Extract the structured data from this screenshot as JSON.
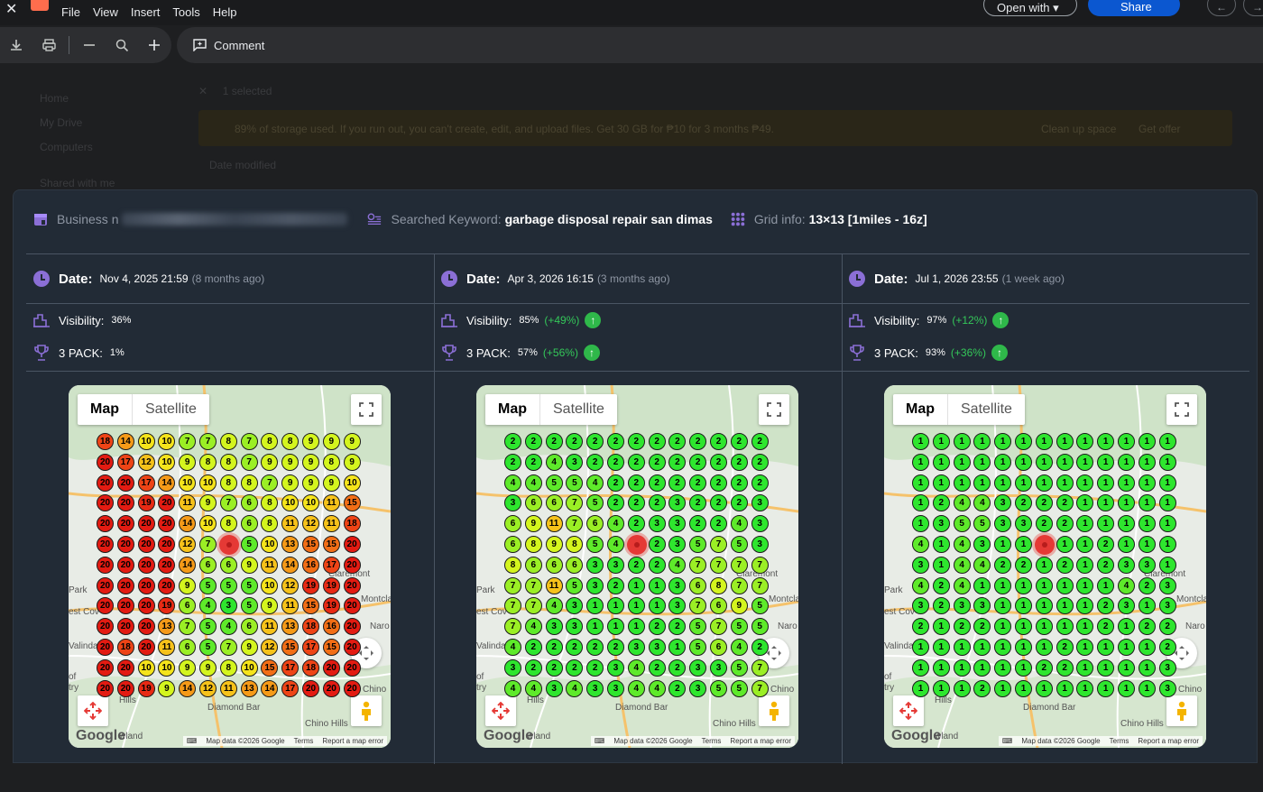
{
  "menubar": {
    "menus": [
      "File",
      "View",
      "Insert",
      "Tools",
      "Help"
    ],
    "open_with": "Open with",
    "share": "Share"
  },
  "toolbar": {
    "comment": "Comment"
  },
  "background": {
    "sidebar": [
      "Home",
      "My Drive",
      "Computers",
      "Shared with me"
    ],
    "selected": "1 selected",
    "banner": "89% of storage used. If you run out, you can't create, edit, and upload files. Get 30 GB for ₱10 for 3 months ₱49.",
    "banner_actions": [
      "Clean up space",
      "Get offer"
    ],
    "date_modified": "Date modified"
  },
  "header": {
    "business_label": "Business n",
    "keyword_label": "Searched Keyword:",
    "keyword_value": "garbage disposal repair san dimas",
    "grid_label": "Grid info:",
    "grid_value": "13×13 [1miles - 16z]"
  },
  "date_label": "Date:",
  "visibility_label": "Visibility:",
  "pack_label": "3 PACK:",
  "columns": [
    {
      "date": "Nov 4, 2025 21:59",
      "ago": "(8 months ago)",
      "visibility": "36%",
      "visibility_delta": "",
      "pack": "1%",
      "pack_delta": "",
      "grid": [
        [
          18,
          14,
          10,
          10,
          7,
          7,
          8,
          7,
          8,
          8,
          9,
          9,
          9
        ],
        [
          20,
          17,
          12,
          10,
          9,
          8,
          8,
          7,
          9,
          9,
          9,
          8,
          9
        ],
        [
          20,
          20,
          17,
          14,
          10,
          10,
          8,
          8,
          7,
          9,
          9,
          9,
          10
        ],
        [
          20,
          20,
          19,
          20,
          11,
          9,
          7,
          6,
          8,
          10,
          10,
          11,
          15
        ],
        [
          20,
          20,
          20,
          20,
          14,
          10,
          8,
          6,
          8,
          11,
          12,
          11,
          18
        ],
        [
          20,
          20,
          20,
          20,
          12,
          7,
          0,
          5,
          10,
          13,
          15,
          15,
          20
        ],
        [
          20,
          20,
          20,
          20,
          14,
          6,
          6,
          9,
          11,
          14,
          16,
          17,
          20
        ],
        [
          20,
          20,
          20,
          20,
          9,
          5,
          5,
          5,
          10,
          12,
          19,
          19,
          20
        ],
        [
          20,
          20,
          20,
          19,
          6,
          4,
          3,
          5,
          9,
          11,
          15,
          19,
          20
        ],
        [
          20,
          20,
          20,
          13,
          7,
          5,
          4,
          6,
          11,
          13,
          18,
          16,
          20
        ],
        [
          20,
          18,
          20,
          11,
          6,
          5,
          7,
          9,
          12,
          15,
          17,
          15,
          20
        ],
        [
          20,
          20,
          10,
          10,
          9,
          9,
          8,
          10,
          15,
          17,
          18,
          20,
          20
        ],
        [
          20,
          20,
          19,
          9,
          14,
          12,
          11,
          13,
          14,
          17,
          20,
          20,
          20
        ]
      ]
    },
    {
      "date": "Apr 3, 2026 16:15",
      "ago": "(3 months ago)",
      "visibility": "85%",
      "visibility_delta": "(+49%)",
      "pack": "57%",
      "pack_delta": "(+56%)",
      "grid": [
        [
          2,
          2,
          2,
          2,
          2,
          2,
          2,
          2,
          2,
          2,
          2,
          2,
          2
        ],
        [
          2,
          2,
          4,
          3,
          2,
          2,
          2,
          2,
          2,
          2,
          2,
          2,
          2
        ],
        [
          4,
          4,
          5,
          5,
          4,
          2,
          2,
          2,
          2,
          2,
          2,
          2,
          2
        ],
        [
          3,
          6,
          6,
          7,
          5,
          2,
          2,
          2,
          3,
          2,
          2,
          2,
          3
        ],
        [
          6,
          9,
          11,
          7,
          6,
          4,
          2,
          3,
          3,
          2,
          2,
          4,
          3
        ],
        [
          6,
          8,
          9,
          8,
          5,
          4,
          0,
          2,
          3,
          5,
          7,
          5,
          3
        ],
        [
          8,
          6,
          6,
          6,
          3,
          3,
          2,
          2,
          4,
          7,
          7,
          7,
          7
        ],
        [
          7,
          7,
          11,
          5,
          3,
          2,
          1,
          1,
          3,
          6,
          8,
          7,
          7
        ],
        [
          7,
          7,
          4,
          3,
          1,
          1,
          1,
          1,
          3,
          7,
          6,
          9,
          5
        ],
        [
          7,
          4,
          3,
          3,
          1,
          1,
          1,
          2,
          2,
          5,
          7,
          5,
          5
        ],
        [
          4,
          2,
          2,
          2,
          2,
          2,
          3,
          3,
          1,
          5,
          6,
          4,
          2
        ],
        [
          3,
          2,
          2,
          2,
          2,
          3,
          4,
          2,
          2,
          3,
          3,
          5,
          7
        ],
        [
          4,
          4,
          3,
          4,
          3,
          3,
          4,
          4,
          2,
          3,
          5,
          5,
          7
        ]
      ]
    },
    {
      "date": "Jul 1, 2026 23:55",
      "ago": "(1 week ago)",
      "visibility": "97%",
      "visibility_delta": "(+12%)",
      "pack": "93%",
      "pack_delta": "(+36%)",
      "grid": [
        [
          1,
          1,
          1,
          1,
          1,
          1,
          1,
          1,
          1,
          1,
          1,
          1,
          1
        ],
        [
          1,
          1,
          1,
          1,
          1,
          1,
          1,
          1,
          1,
          1,
          1,
          1,
          1
        ],
        [
          1,
          1,
          1,
          1,
          1,
          1,
          1,
          1,
          1,
          1,
          1,
          1,
          1
        ],
        [
          1,
          2,
          4,
          4,
          3,
          2,
          2,
          2,
          1,
          1,
          1,
          1,
          1
        ],
        [
          1,
          3,
          5,
          5,
          3,
          3,
          2,
          2,
          1,
          1,
          1,
          1,
          1
        ],
        [
          4,
          1,
          4,
          3,
          1,
          1,
          0,
          1,
          1,
          2,
          1,
          1,
          1
        ],
        [
          3,
          1,
          4,
          4,
          2,
          2,
          1,
          2,
          1,
          2,
          3,
          3,
          1
        ],
        [
          4,
          2,
          4,
          1,
          1,
          1,
          1,
          1,
          1,
          1,
          4,
          2,
          3
        ],
        [
          3,
          2,
          3,
          3,
          1,
          1,
          1,
          1,
          1,
          2,
          3,
          1,
          3
        ],
        [
          2,
          1,
          2,
          2,
          1,
          1,
          1,
          1,
          1,
          2,
          1,
          2,
          2
        ],
        [
          1,
          1,
          1,
          1,
          1,
          1,
          1,
          2,
          1,
          1,
          1,
          1,
          2
        ],
        [
          1,
          1,
          1,
          1,
          1,
          1,
          2,
          2,
          1,
          1,
          1,
          1,
          3
        ],
        [
          1,
          1,
          1,
          2,
          1,
          1,
          1,
          1,
          1,
          1,
          1,
          1,
          3
        ]
      ]
    }
  ],
  "map": {
    "tab_map": "Map",
    "tab_satellite": "Satellite",
    "google": "Google",
    "footer": [
      "Map data ©2026 Google",
      "Terms",
      "Report a map error"
    ],
    "places": [
      "Park",
      "est Cov",
      "Valinda",
      "of",
      "try",
      "Hills",
      "Diamond Bar",
      "Chino Hills",
      "Chino",
      "Montcla",
      "Naro",
      "wland",
      "Claremont"
    ]
  },
  "colors": {
    "accent": "#8b6fd6",
    "delta_green": "#34c759",
    "panel": "#222b36"
  }
}
